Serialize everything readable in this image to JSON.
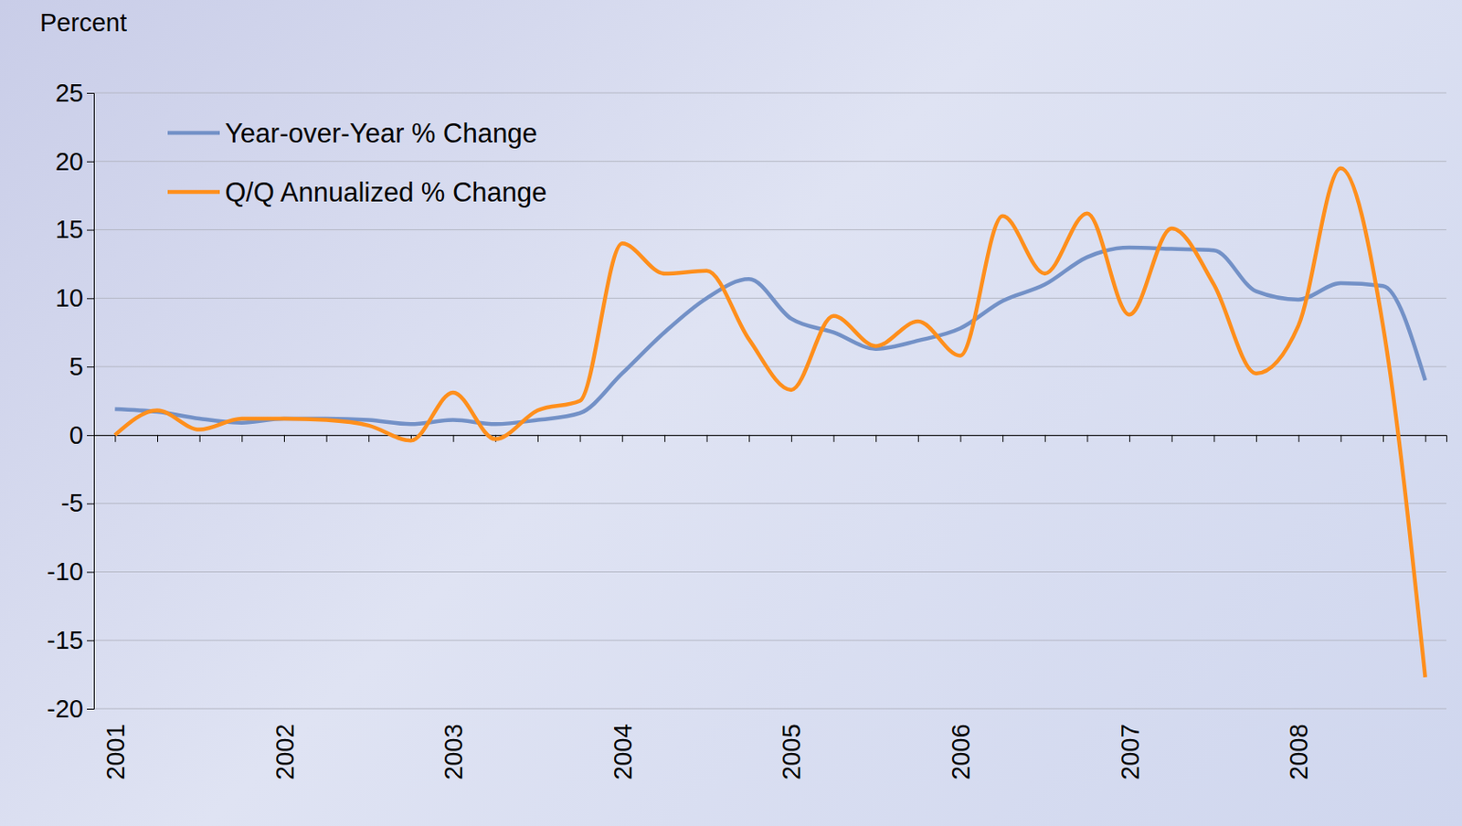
{
  "chart_data": {
    "type": "line",
    "y_label": "Percent",
    "categories": [
      "2001",
      null,
      null,
      null,
      "2002",
      null,
      null,
      null,
      "2003",
      null,
      null,
      null,
      "2004",
      null,
      null,
      null,
      "2005",
      null,
      null,
      null,
      "2006",
      null,
      null,
      null,
      "2007",
      null,
      null,
      null,
      "2008",
      null,
      null,
      null
    ],
    "series": [
      {
        "name": "Year-over-Year % Change",
        "color": "#7391c7",
        "values": [
          1.9,
          1.7,
          1.2,
          0.9,
          1.2,
          1.2,
          1.1,
          0.8,
          1.1,
          0.8,
          1.1,
          1.6,
          4.5,
          7.5,
          10.0,
          11.4,
          8.5,
          7.5,
          6.3,
          6.9,
          7.8,
          9.8,
          11.0,
          13.0,
          13.7,
          13.6,
          13.5,
          10.5,
          9.9,
          11.1,
          10.9,
          4.0
        ]
      },
      {
        "name": "Q/Q Annualized % Change",
        "color": "#ff8f1c",
        "values": [
          0,
          1.8,
          0.4,
          1.2,
          1.2,
          1.1,
          0.7,
          -0.4,
          3.1,
          -0.3,
          1.8,
          2.5,
          14.0,
          11.8,
          12.0,
          7.0,
          3.3,
          8.7,
          6.5,
          8.3,
          5.8,
          16.0,
          11.8,
          16.2,
          8.8,
          15.1,
          11.0,
          4.5,
          8.0,
          19.5,
          8.0,
          -17.7
        ]
      }
    ],
    "ylim": [
      -20,
      25
    ],
    "yticks": [
      -20,
      -15,
      -10,
      -5,
      0,
      5,
      10,
      15,
      20,
      25
    ],
    "grid": true,
    "legend": "upper left"
  }
}
